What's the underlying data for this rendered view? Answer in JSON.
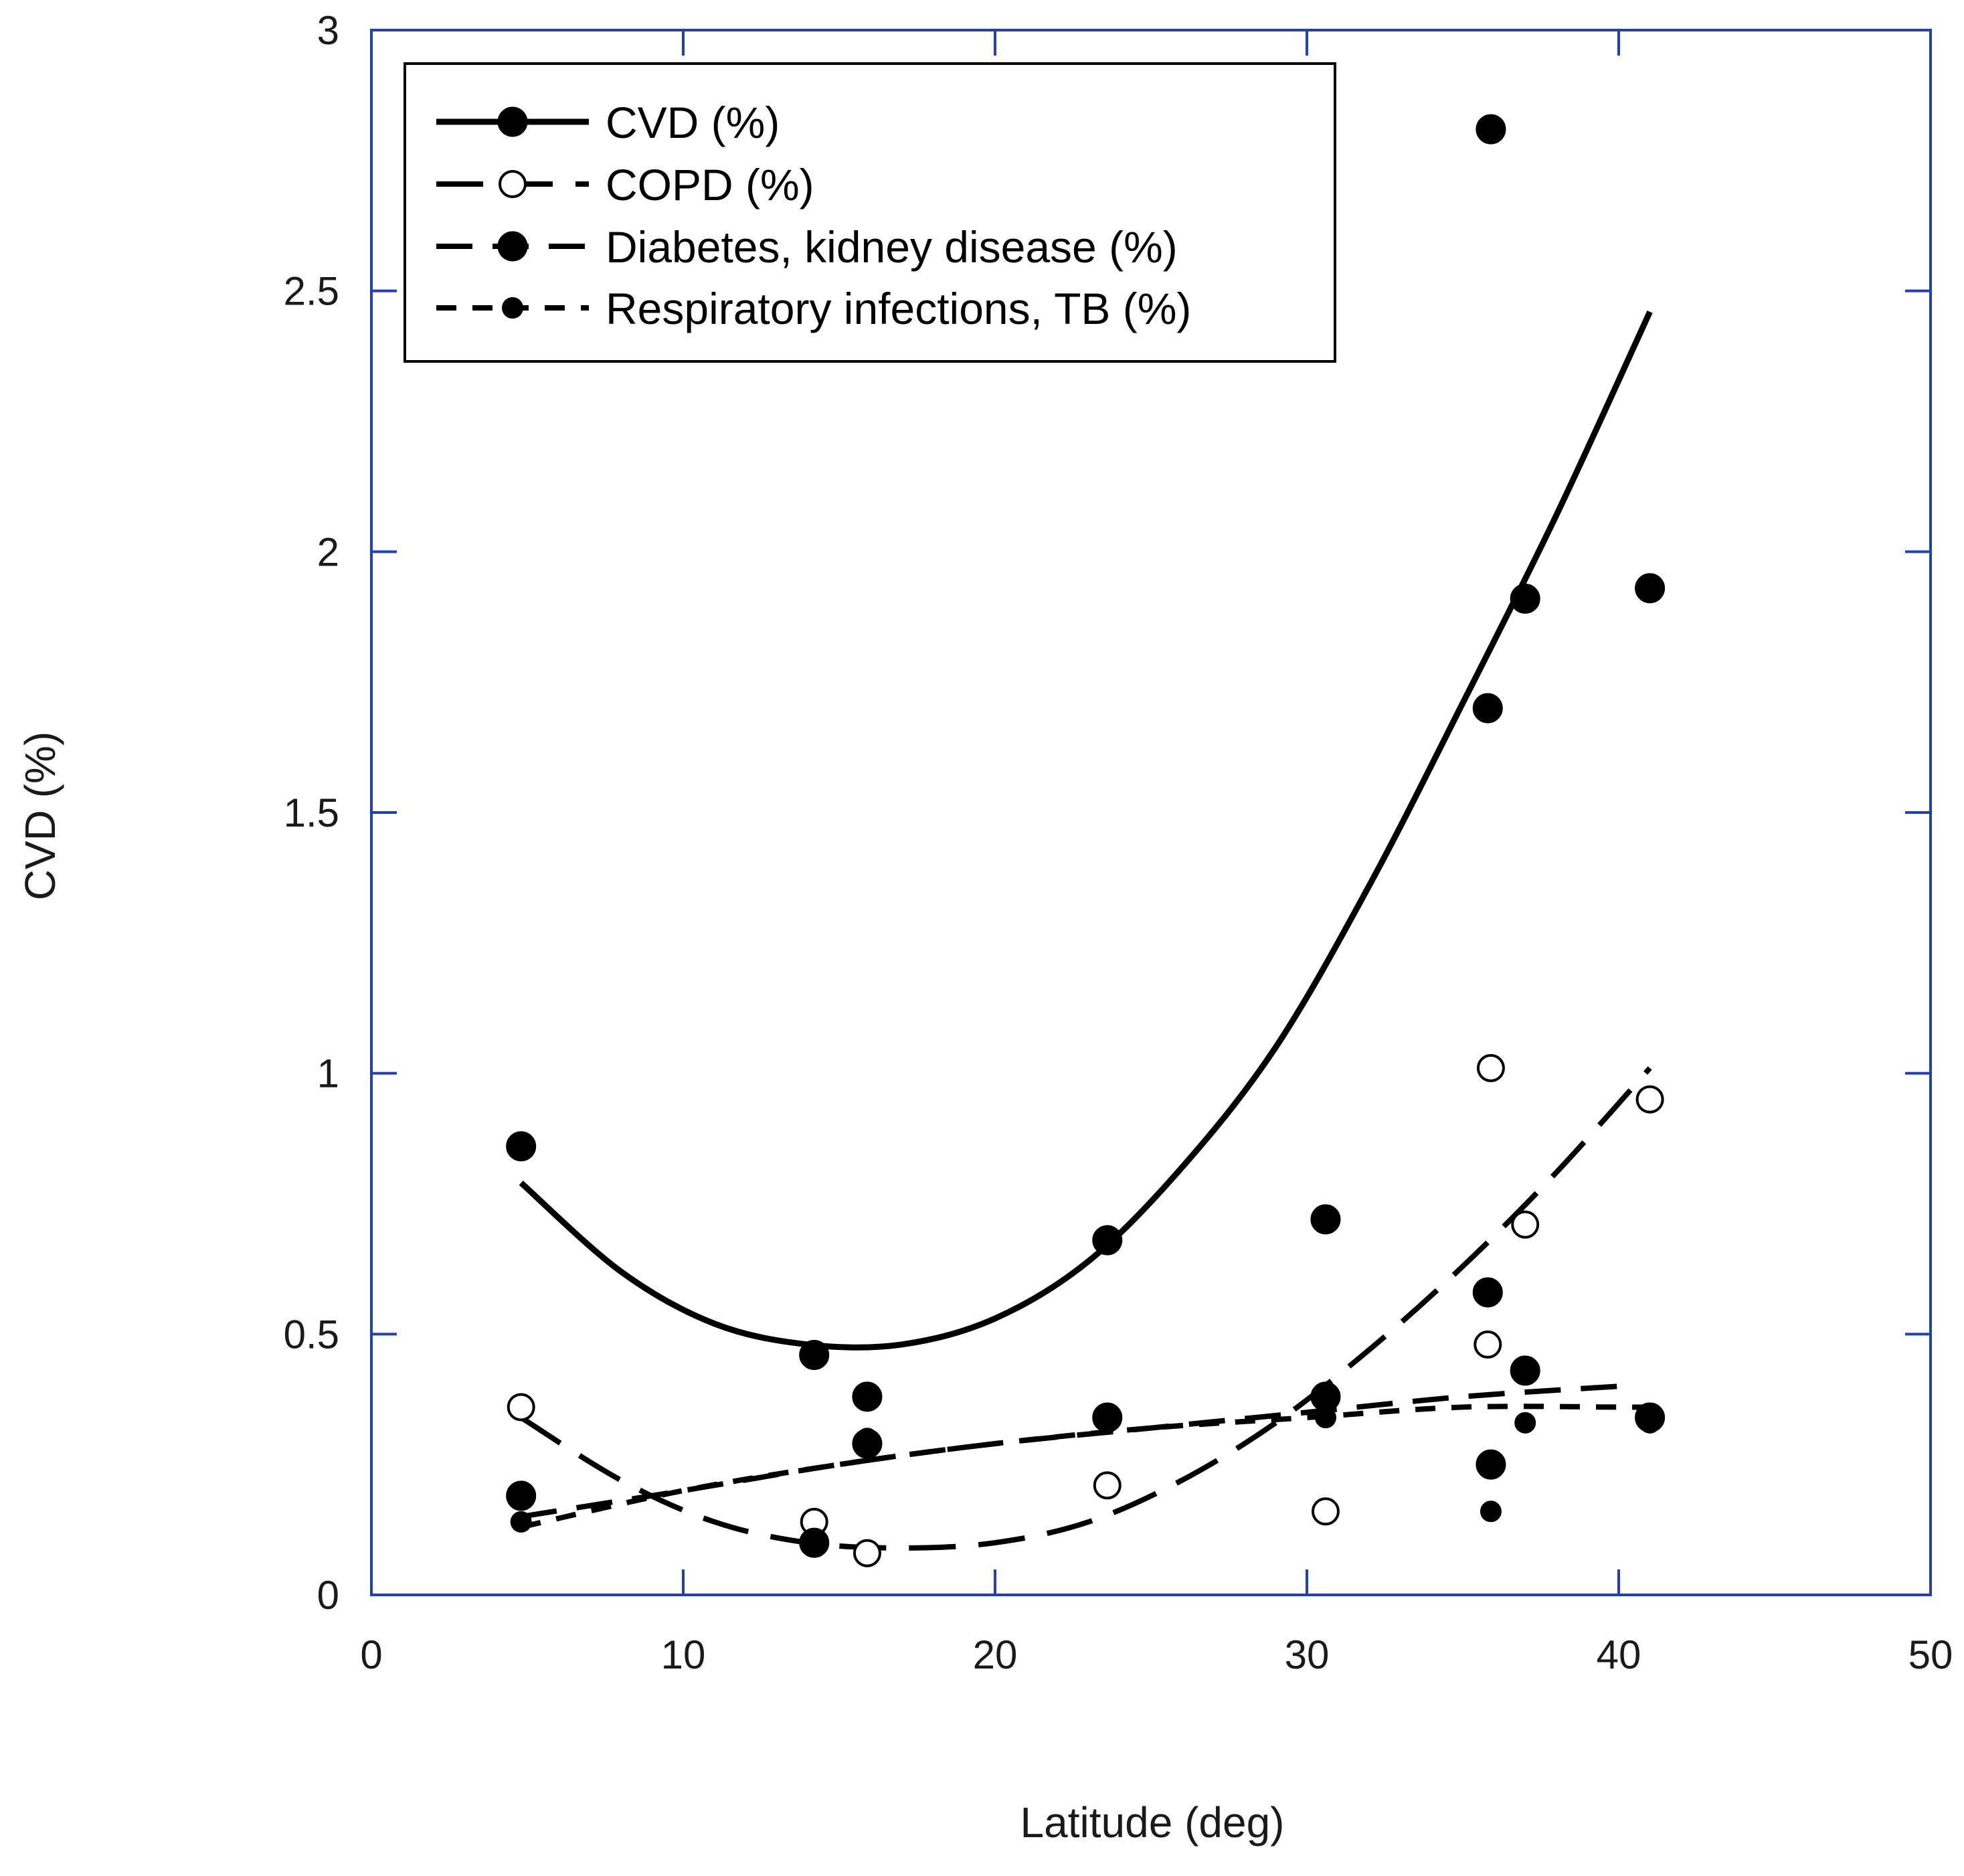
{
  "chart_data": {
    "type": "scatter",
    "title": "",
    "xlabel": "Latitude (deg)",
    "ylabel": "CVD (%)",
    "xlim": [
      0,
      50
    ],
    "ylim": [
      0,
      3
    ],
    "xticks": [
      0,
      10,
      20,
      30,
      40,
      50
    ],
    "yticks": [
      0,
      0.5,
      1,
      1.5,
      2,
      2.5,
      3
    ],
    "xtick_labels": [
      "0",
      "10",
      "20",
      "30",
      "40",
      "50"
    ],
    "ytick_labels": [
      "0",
      "0.5",
      "1",
      "1.5",
      "2",
      "2.5",
      "3"
    ],
    "legend_position": "top-left",
    "axis_color": "#1f3fbf",
    "series": [
      {
        "name": "CVD (%)",
        "marker": "filled-circle",
        "line_style": "solid",
        "points": [
          [
            4.8,
            0.86
          ],
          [
            14.2,
            0.46
          ],
          [
            23.6,
            0.68
          ],
          [
            30.6,
            0.72
          ],
          [
            35.8,
            1.7
          ],
          [
            35.9,
            2.81
          ],
          [
            37.0,
            1.91
          ],
          [
            41.0,
            1.93
          ]
        ],
        "fit": [
          [
            4.8,
            0.79
          ],
          [
            8,
            0.62
          ],
          [
            11,
            0.52
          ],
          [
            14,
            0.48
          ],
          [
            17,
            0.48
          ],
          [
            20,
            0.53
          ],
          [
            23,
            0.64
          ],
          [
            26,
            0.82
          ],
          [
            29,
            1.05
          ],
          [
            32,
            1.36
          ],
          [
            35,
            1.71
          ],
          [
            38,
            2.07
          ],
          [
            41,
            2.46
          ]
        ]
      },
      {
        "name": "COPD (%)",
        "marker": "open-circle",
        "line_style": "long-dash",
        "points": [
          [
            4.8,
            0.36
          ],
          [
            14.2,
            0.14
          ],
          [
            15.9,
            0.08
          ],
          [
            23.6,
            0.21
          ],
          [
            30.6,
            0.16
          ],
          [
            35.8,
            0.48
          ],
          [
            35.9,
            1.01
          ],
          [
            37.0,
            0.71
          ],
          [
            41.0,
            0.95
          ]
        ],
        "fit": [
          [
            4.8,
            0.34
          ],
          [
            8,
            0.22
          ],
          [
            11,
            0.14
          ],
          [
            14,
            0.1
          ],
          [
            17,
            0.09
          ],
          [
            20,
            0.1
          ],
          [
            23,
            0.14
          ],
          [
            26,
            0.22
          ],
          [
            29,
            0.33
          ],
          [
            32,
            0.47
          ],
          [
            35,
            0.63
          ],
          [
            38,
            0.81
          ],
          [
            41,
            1.01
          ]
        ]
      },
      {
        "name": "Diabetes, kidney disease (%)",
        "marker": "filled-circle",
        "line_style": "medium-dash",
        "points": [
          [
            4.8,
            0.19
          ],
          [
            14.2,
            0.1
          ],
          [
            15.9,
            0.38
          ],
          [
            15.9,
            0.29
          ],
          [
            23.6,
            0.34
          ],
          [
            30.6,
            0.38
          ],
          [
            35.8,
            0.58
          ],
          [
            35.9,
            0.25
          ],
          [
            37.0,
            0.43
          ],
          [
            41.0,
            0.34
          ]
        ],
        "fit": [
          [
            4.8,
            0.15
          ],
          [
            10,
            0.2
          ],
          [
            15,
            0.25
          ],
          [
            20,
            0.29
          ],
          [
            25,
            0.32
          ],
          [
            30,
            0.35
          ],
          [
            35,
            0.38
          ],
          [
            40,
            0.4
          ]
        ]
      },
      {
        "name": "Respiratory infections, TB (%)",
        "marker": "small-filled-circle",
        "line_style": "short-dash",
        "points": [
          [
            4.8,
            0.14
          ],
          [
            14.2,
            0.1
          ],
          [
            15.9,
            0.3
          ],
          [
            23.6,
            0.33
          ],
          [
            30.6,
            0.34
          ],
          [
            35.9,
            0.16
          ],
          [
            37.0,
            0.33
          ],
          [
            41.0,
            0.33
          ]
        ],
        "fit": [
          [
            4.8,
            0.13
          ],
          [
            10,
            0.2
          ],
          [
            15,
            0.25
          ],
          [
            20,
            0.29
          ],
          [
            25,
            0.32
          ],
          [
            30,
            0.34
          ],
          [
            35,
            0.36
          ],
          [
            40,
            0.36
          ],
          [
            41,
            0.36
          ]
        ]
      }
    ]
  }
}
